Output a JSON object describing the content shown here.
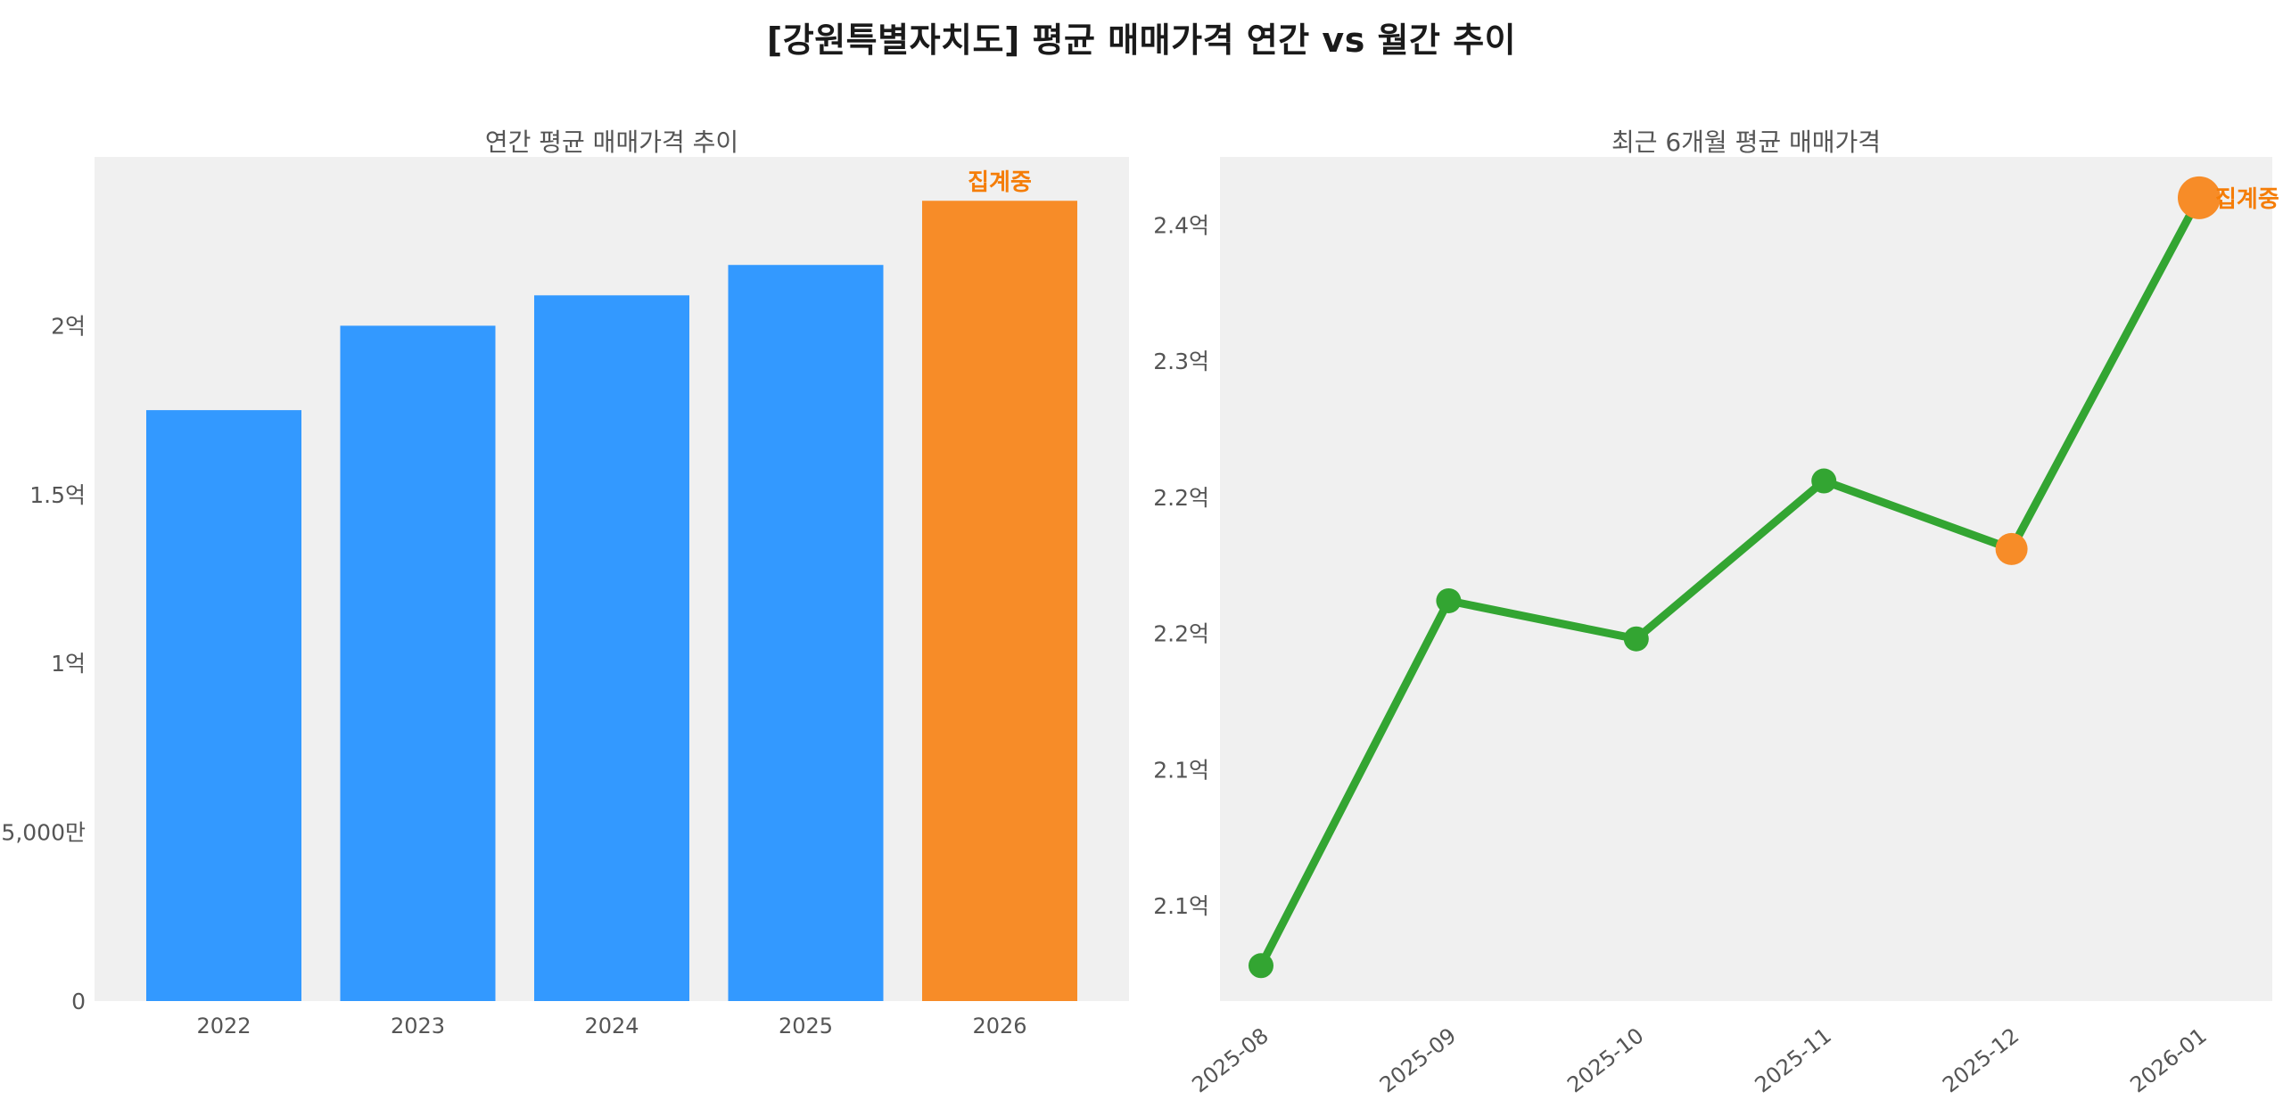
{
  "page": {
    "title": "[강원특별자치도] 평균 매매가격 연간 vs 월간 추이",
    "background": "#ffffff",
    "plot_background": "#f0f0f0",
    "title_color": "#1a1a1a",
    "subtitle_color": "#555555",
    "tick_color": "#555555"
  },
  "chart_data": [
    {
      "type": "bar",
      "title": "연간 평균 매매가격 추이",
      "unit": "억",
      "categories": [
        "2022",
        "2023",
        "2024",
        "2025",
        "2026"
      ],
      "values": [
        1.75,
        2.0,
        2.09,
        2.18,
        2.37
      ],
      "bar_color": "#3399ff",
      "highlight_color": "#f78c28",
      "highlight_index": 4,
      "annotation": "집계중",
      "annotation_color": "#f57d07",
      "ylim": [
        0,
        2.5
      ],
      "yticks": [
        {
          "value": 0,
          "label": "0"
        },
        {
          "value": 0.5,
          "label": "5,000만"
        },
        {
          "value": 1,
          "label": "1억"
        },
        {
          "value": 1.5,
          "label": "1.5억"
        },
        {
          "value": 2,
          "label": "2억"
        }
      ],
      "grid": false,
      "legend": null
    },
    {
      "type": "line",
      "title": "최근 6개월 평균 매매가격",
      "unit": "억",
      "x": [
        "2025-08",
        "2025-09",
        "2025-10",
        "2025-11",
        "2025-12",
        "2026-01"
      ],
      "values": [
        2.078,
        2.212,
        2.198,
        2.256,
        2.231,
        2.36
      ],
      "line_color": "#33a532",
      "point_color": "#33a532",
      "highlight_color": "#f78c28",
      "highlight_indices": [
        4,
        5
      ],
      "annotation": "집계중",
      "annotation_color": "#f57d07",
      "ylim": [
        2.065,
        2.375
      ],
      "yticks": [
        {
          "value": 2.1,
          "label": "2.1억"
        },
        {
          "value": 2.15,
          "label": "2.1억"
        },
        {
          "value": 2.2,
          "label": "2.2억"
        },
        {
          "value": 2.25,
          "label": "2.2억"
        },
        {
          "value": 2.3,
          "label": "2.3억"
        },
        {
          "value": 2.35,
          "label": "2.4억"
        }
      ],
      "grid": false,
      "legend": null
    }
  ]
}
